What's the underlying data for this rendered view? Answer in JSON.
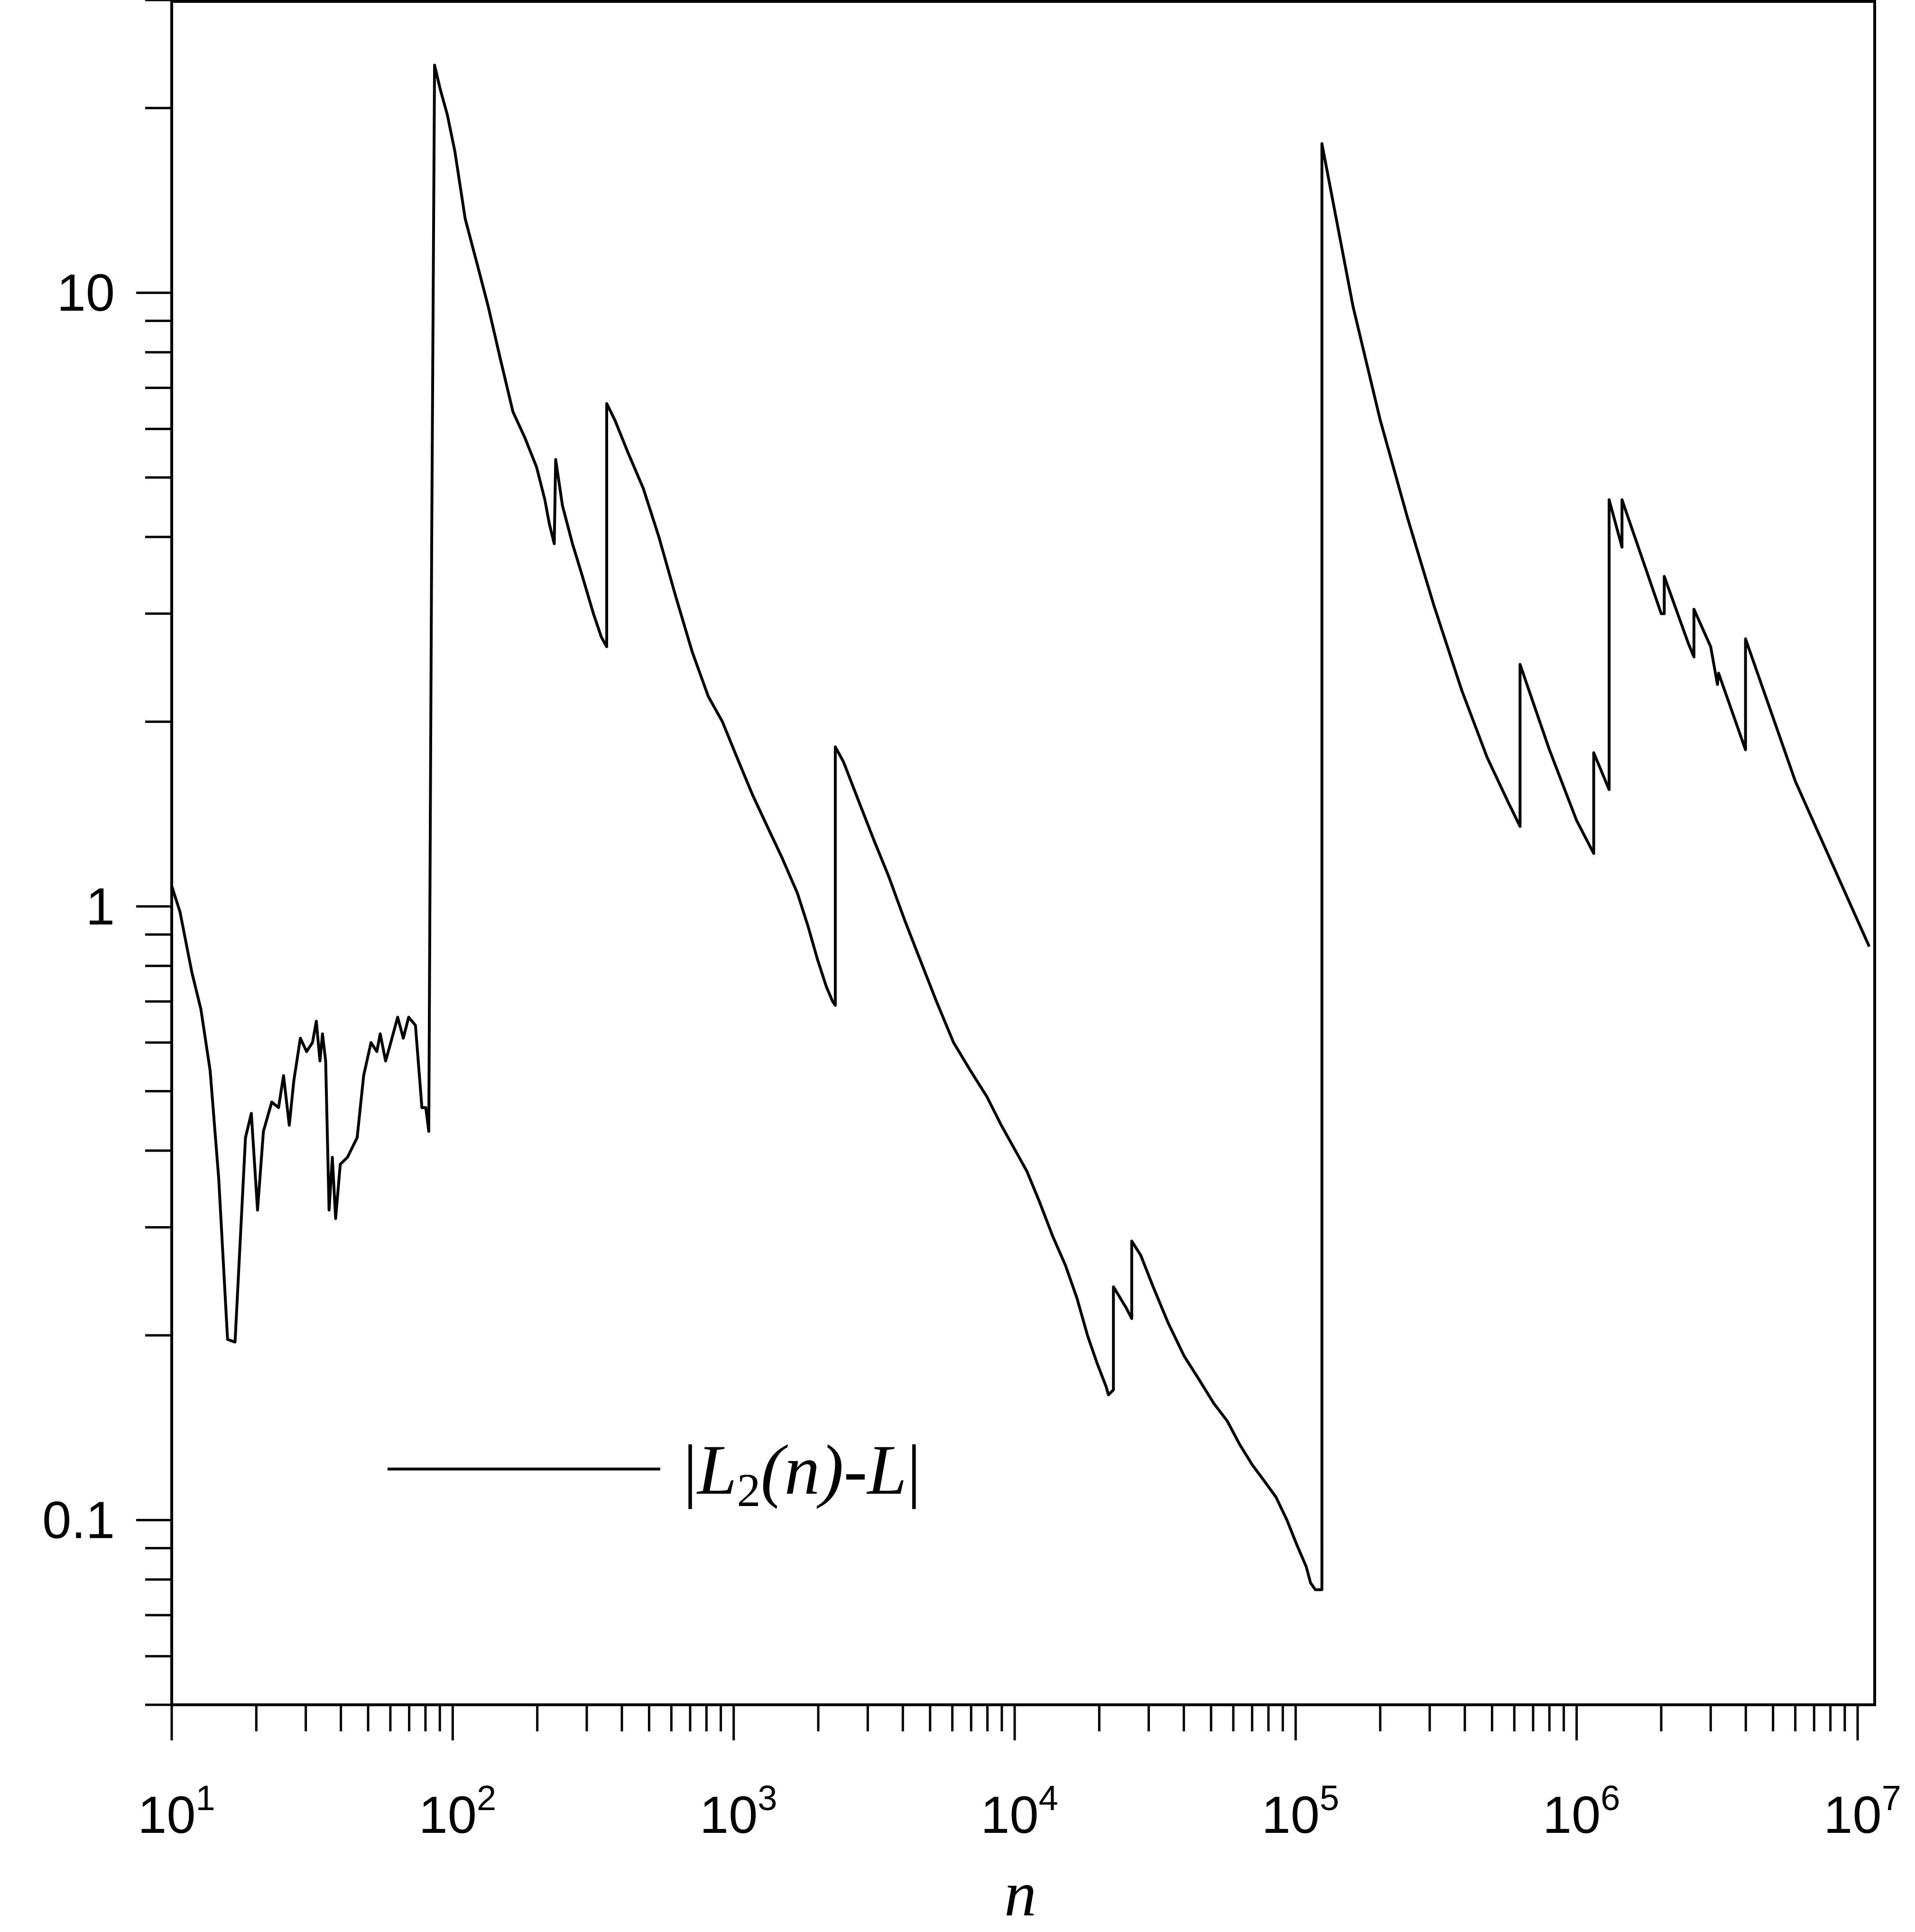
{
  "chart_data": {
    "type": "line",
    "title": "",
    "xlabel": "n",
    "ylabel": "",
    "x_scale": "log",
    "y_scale": "log",
    "xlim": [
      10,
      11500000
    ],
    "ylim": [
      0.05,
      30
    ],
    "x_major_ticks": [
      {
        "value": 10,
        "base": "10",
        "exp": "1"
      },
      {
        "value": 100,
        "base": "10",
        "exp": "2"
      },
      {
        "value": 1000,
        "base": "10",
        "exp": "3"
      },
      {
        "value": 10000,
        "base": "10",
        "exp": "4"
      },
      {
        "value": 100000,
        "base": "10",
        "exp": "5"
      },
      {
        "value": 1000000,
        "base": "10",
        "exp": "6"
      },
      {
        "value": 10000000,
        "base": "10",
        "exp": "7"
      }
    ],
    "y_major_ticks": [
      {
        "value": 0.1,
        "label": "0.1"
      },
      {
        "value": 1,
        "label": "1"
      },
      {
        "value": 10,
        "label": "10"
      }
    ],
    "grid": false,
    "legend": {
      "position": "bottom-left",
      "entries": [
        {
          "bar_open": "|",
          "var": "L",
          "sub": "2",
          "mid": "(n)-",
          "var2": "L",
          "bar_close": "|"
        }
      ]
    },
    "series": [
      {
        "name": "|L2(n)-L|",
        "points": [
          [
            10,
            1.08
          ],
          [
            10.7,
            0.98
          ],
          [
            11.8,
            0.78
          ],
          [
            12.7,
            0.68
          ],
          [
            13.7,
            0.54
          ],
          [
            14.7,
            0.36
          ],
          [
            15.8,
            0.197
          ],
          [
            16.8,
            0.195
          ],
          [
            18.3,
            0.42
          ],
          [
            19.2,
            0.46
          ],
          [
            20.2,
            0.32
          ],
          [
            21.2,
            0.43
          ],
          [
            22.7,
            0.48
          ],
          [
            24.0,
            0.47
          ],
          [
            25.0,
            0.53
          ],
          [
            26.2,
            0.44
          ],
          [
            27.2,
            0.52
          ],
          [
            28.7,
            0.61
          ],
          [
            30.2,
            0.58
          ],
          [
            31.7,
            0.6
          ],
          [
            32.7,
            0.65
          ],
          [
            33.7,
            0.56
          ],
          [
            34.4,
            0.62
          ],
          [
            35.3,
            0.56
          ],
          [
            36.3,
            0.32
          ],
          [
            37.3,
            0.39
          ],
          [
            38.3,
            0.31
          ],
          [
            39.8,
            0.38
          ],
          [
            42.2,
            0.39
          ],
          [
            45.7,
            0.42
          ],
          [
            48.2,
            0.53
          ],
          [
            51.2,
            0.6
          ],
          [
            53.7,
            0.58
          ],
          [
            55.2,
            0.62
          ],
          [
            57.7,
            0.56
          ],
          [
            60.2,
            0.6
          ],
          [
            63.7,
            0.66
          ],
          [
            66.7,
            0.61
          ],
          [
            69.7,
            0.66
          ],
          [
            73.7,
            0.64
          ],
          [
            77.7,
            0.47
          ],
          [
            80.2,
            0.47
          ],
          [
            82.2,
            0.43
          ],
          [
            84.2,
            4.0
          ],
          [
            86.2,
            23.5
          ],
          [
            90.2,
            21.5
          ],
          [
            95.7,
            19.5
          ],
          [
            101.8,
            17.0
          ],
          [
            110.8,
            13.2
          ],
          [
            121.8,
            11.2
          ],
          [
            133.8,
            9.5
          ],
          [
            147.8,
            7.8
          ],
          [
            163.8,
            6.4
          ],
          [
            180.8,
            5.8
          ],
          [
            198.8,
            5.2
          ],
          [
            212.8,
            4.6
          ],
          [
            220.8,
            4.2
          ],
          [
            229.8,
            3.9
          ],
          [
            232.5,
            5.35
          ],
          [
            245.8,
            4.5
          ],
          [
            266.8,
            3.9
          ],
          [
            286.8,
            3.5
          ],
          [
            316.8,
            3.0
          ],
          [
            337.8,
            2.75
          ],
          [
            353.3,
            2.65
          ],
          [
            353.3,
            6.6
          ],
          [
            377.8,
            6.2
          ],
          [
            419.8,
            5.5
          ],
          [
            476.8,
            4.8
          ],
          [
            541.8,
            4.0
          ],
          [
            621.8,
            3.2
          ],
          [
            711.8,
            2.6
          ],
          [
            811.8,
            2.2
          ],
          [
            911.8,
            2.0
          ],
          [
            1026.8,
            1.75
          ],
          [
            1166.8,
            1.52
          ],
          [
            1316.8,
            1.35
          ],
          [
            1486.8,
            1.2
          ],
          [
            1686.8,
            1.05
          ],
          [
            1836.8,
            0.93
          ],
          [
            1986.8,
            0.82
          ],
          [
            2136.8,
            0.74
          ],
          [
            2250,
            0.7
          ],
          [
            2300,
            0.69
          ],
          [
            2300,
            1.82
          ],
          [
            2460,
            1.72
          ],
          [
            2760,
            1.5
          ],
          [
            3160,
            1.28
          ],
          [
            3560,
            1.12
          ],
          [
            4060,
            0.95
          ],
          [
            4600,
            0.82
          ],
          [
            5270,
            0.7
          ],
          [
            6060,
            0.6
          ],
          [
            6960,
            0.54
          ],
          [
            7960,
            0.49
          ],
          [
            8960,
            0.44
          ],
          [
            10060,
            0.4
          ],
          [
            11060,
            0.37
          ],
          [
            12260,
            0.33
          ],
          [
            13660,
            0.29
          ],
          [
            15160,
            0.26
          ],
          [
            16660,
            0.23
          ],
          [
            18160,
            0.2
          ],
          [
            19660,
            0.18
          ],
          [
            21160,
            0.165
          ],
          [
            21560,
            0.16
          ],
          [
            22460,
            0.163
          ],
          [
            22460,
            0.24
          ],
          [
            24900,
            0.222
          ],
          [
            26100,
            0.213
          ],
          [
            26100,
            0.285
          ],
          [
            28100,
            0.27
          ],
          [
            31100,
            0.24
          ],
          [
            35100,
            0.21
          ],
          [
            40100,
            0.185
          ],
          [
            45100,
            0.17
          ],
          [
            51100,
            0.155
          ],
          [
            57100,
            0.145
          ],
          [
            63100,
            0.133
          ],
          [
            70100,
            0.123
          ],
          [
            77100,
            0.116
          ],
          [
            85100,
            0.109
          ],
          [
            93100,
            0.1
          ],
          [
            101100,
            0.091
          ],
          [
            109000,
            0.084
          ],
          [
            113000,
            0.079
          ],
          [
            117500,
            0.077
          ],
          [
            124000,
            0.077
          ],
          [
            124000,
            17.5
          ],
          [
            160000,
            9.5
          ],
          [
            200000,
            6.2
          ],
          [
            250000,
            4.3
          ],
          [
            310000,
            3.1
          ],
          [
            390000,
            2.25
          ],
          [
            480000,
            1.75
          ],
          [
            570000,
            1.48
          ],
          [
            629000,
            1.35
          ],
          [
            629000,
            2.48
          ],
          [
            800000,
            1.8
          ],
          [
            1000000,
            1.38
          ],
          [
            1150000,
            1.22
          ],
          [
            1150000,
            1.78
          ],
          [
            1305000,
            1.55
          ],
          [
            1305000,
            4.6
          ],
          [
            1450000,
            3.85
          ],
          [
            1450000,
            4.6
          ],
          [
            2000000,
            3.0
          ],
          [
            2050000,
            3.0
          ],
          [
            2050000,
            3.45
          ],
          [
            2500000,
            2.68
          ],
          [
            2615000,
            2.55
          ],
          [
            2615000,
            3.05
          ],
          [
            3000000,
            2.65
          ],
          [
            3170000,
            2.3
          ],
          [
            3200000,
            2.4
          ],
          [
            3990000,
            1.8
          ],
          [
            3990000,
            2.73
          ],
          [
            6000000,
            1.6
          ],
          [
            11000000,
            0.86
          ]
        ]
      }
    ]
  }
}
